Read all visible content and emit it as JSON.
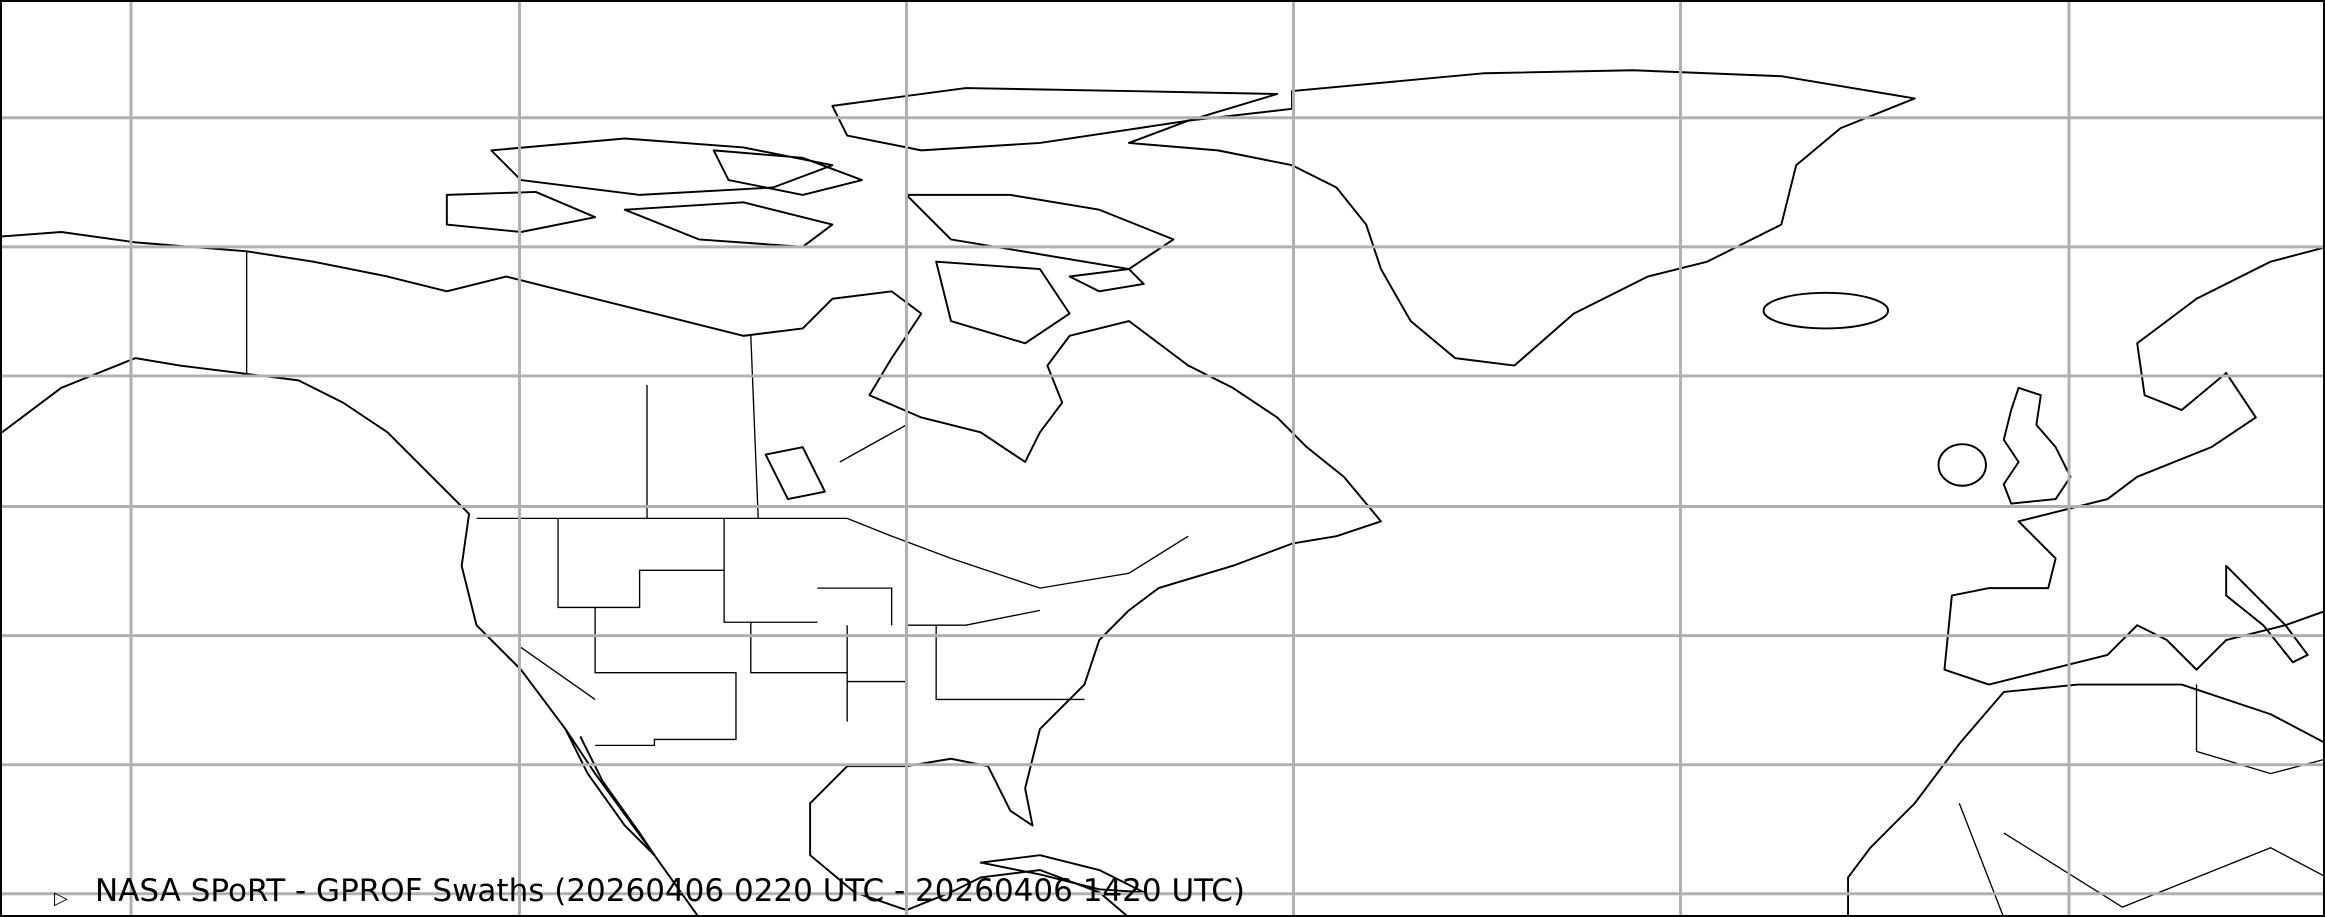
{
  "map": {
    "title": "NASA SPoRT - GPROF Swaths (20260406 0220 UTC - 20260406 1420 UTC)",
    "region": "North Atlantic / North America / Europe",
    "gridlines": true,
    "colors": {
      "coastline": "#000000",
      "grid": "#b0b0b0",
      "background": "#ffffff"
    },
    "legend_marker_icon": "triangle-outline-icon"
  }
}
